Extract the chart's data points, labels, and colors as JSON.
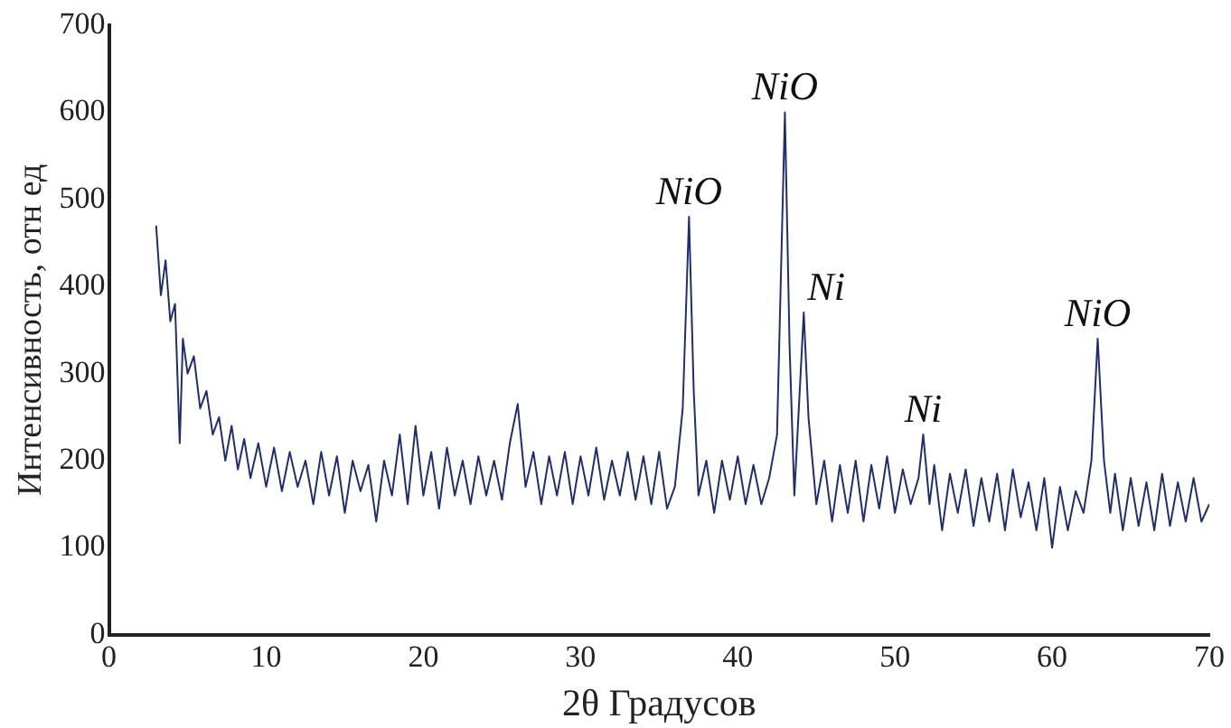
{
  "chart_data": {
    "type": "line",
    "xlabel": "2θ Градусов",
    "ylabel": "Интенсивность, отн ед",
    "xlim": [
      0,
      70
    ],
    "ylim": [
      0,
      700
    ],
    "xticks": [
      0,
      10,
      20,
      30,
      40,
      50,
      60,
      70
    ],
    "yticks": [
      0,
      100,
      200,
      300,
      400,
      500,
      600,
      700
    ],
    "grid": false,
    "legend": false,
    "marker": "none",
    "line_style": "solid",
    "annotations": [
      {
        "text": "NiO",
        "x": 36.9,
        "y": 480
      },
      {
        "text": "NiO",
        "x": 43,
        "y": 600
      },
      {
        "text": "Ni",
        "x": 44.2,
        "y": 370
      },
      {
        "text": "Ni",
        "x": 51.8,
        "y": 230
      },
      {
        "text": "NiO",
        "x": 62.9,
        "y": 340
      }
    ],
    "series": [
      {
        "color": "#1f2f6e",
        "x": [
          3,
          3.3,
          3.6,
          3.9,
          4.2,
          4.5,
          4.7,
          5,
          5.4,
          5.8,
          6.2,
          6.6,
          7,
          7.4,
          7.8,
          8.2,
          8.6,
          9,
          9.5,
          10,
          10.5,
          11,
          11.5,
          12,
          12.5,
          13,
          13.5,
          14,
          14.5,
          15,
          15.5,
          16,
          16.5,
          17,
          17.5,
          18,
          18.5,
          19,
          19.5,
          20,
          20.5,
          21,
          21.5,
          22,
          22.5,
          23,
          23.5,
          24,
          24.5,
          25,
          25.5,
          26,
          26.5,
          27,
          27.5,
          28,
          28.5,
          29,
          29.5,
          30,
          30.5,
          31,
          31.5,
          32,
          32.5,
          33,
          33.5,
          34,
          34.5,
          35,
          35.5,
          36,
          36.5,
          36.9,
          37.2,
          37.5,
          38,
          38.5,
          39,
          39.5,
          40,
          40.5,
          41,
          41.5,
          42,
          42.5,
          43,
          43.3,
          43.6,
          44,
          44.2,
          44.5,
          45,
          45.5,
          46,
          46.5,
          47,
          47.5,
          48,
          48.5,
          49,
          49.5,
          50,
          50.5,
          51,
          51.5,
          51.8,
          52.2,
          52.5,
          53,
          53.5,
          54,
          54.5,
          55,
          55.5,
          56,
          56.5,
          57,
          57.5,
          58,
          58.5,
          59,
          59.5,
          60,
          60.5,
          61,
          61.5,
          62,
          62.5,
          62.9,
          63.3,
          63.7,
          64,
          64.5,
          65,
          65.5,
          66,
          66.5,
          67,
          67.5,
          68,
          68.5,
          69,
          69.5,
          70
        ],
        "values": [
          470,
          390,
          430,
          360,
          380,
          220,
          340,
          300,
          320,
          260,
          280,
          230,
          250,
          200,
          240,
          190,
          225,
          180,
          220,
          170,
          215,
          165,
          210,
          170,
          200,
          150,
          210,
          160,
          205,
          140,
          200,
          165,
          195,
          130,
          200,
          160,
          230,
          150,
          240,
          160,
          210,
          145,
          215,
          160,
          200,
          150,
          205,
          160,
          200,
          155,
          220,
          265,
          170,
          210,
          150,
          205,
          160,
          210,
          150,
          205,
          160,
          215,
          155,
          200,
          160,
          210,
          155,
          205,
          150,
          210,
          145,
          170,
          260,
          480,
          280,
          160,
          200,
          140,
          200,
          155,
          205,
          150,
          195,
          150,
          180,
          230,
          600,
          330,
          160,
          300,
          370,
          250,
          150,
          200,
          130,
          195,
          140,
          200,
          130,
          195,
          145,
          205,
          140,
          190,
          150,
          180,
          230,
          150,
          195,
          120,
          185,
          140,
          190,
          125,
          180,
          130,
          185,
          120,
          190,
          135,
          175,
          120,
          180,
          100,
          170,
          120,
          165,
          140,
          200,
          340,
          200,
          140,
          185,
          120,
          180,
          125,
          175,
          120,
          185,
          125,
          175,
          130,
          180,
          130,
          150
        ]
      }
    ]
  }
}
